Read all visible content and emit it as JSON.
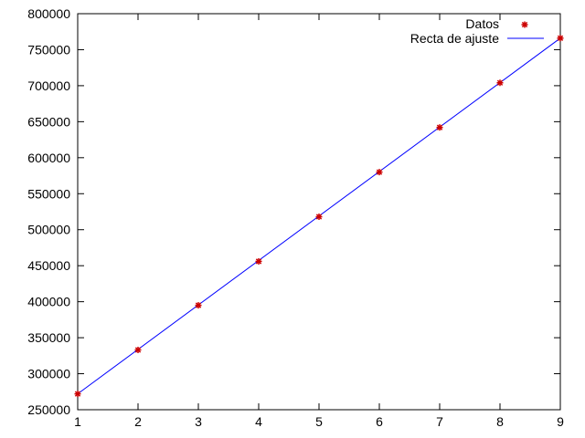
{
  "chart_data": {
    "type": "scatter",
    "x_ticks": [
      "1",
      "2",
      "3",
      "4",
      "5",
      "6",
      "7",
      "8",
      "9"
    ],
    "y_ticks": [
      "250000",
      "300000",
      "350000",
      "400000",
      "450000",
      "500000",
      "550000",
      "600000",
      "650000",
      "700000",
      "750000",
      "800000"
    ],
    "xlim": [
      1,
      9
    ],
    "ylim": [
      250000,
      800000
    ],
    "grid": false,
    "legend_position": "top-right",
    "series": [
      {
        "name": "Datos",
        "kind": "points",
        "color": "#cc0000",
        "x": [
          1,
          2,
          3,
          4,
          5,
          6,
          7,
          8,
          9
        ],
        "y": [
          272000,
          333000,
          395000,
          456000,
          518000,
          580000,
          642000,
          704000,
          766000
        ]
      },
      {
        "name": "Recta de ajuste",
        "kind": "line",
        "color": "#0000ff",
        "x": [
          1,
          9
        ],
        "y": [
          272000,
          766000
        ]
      }
    ]
  }
}
